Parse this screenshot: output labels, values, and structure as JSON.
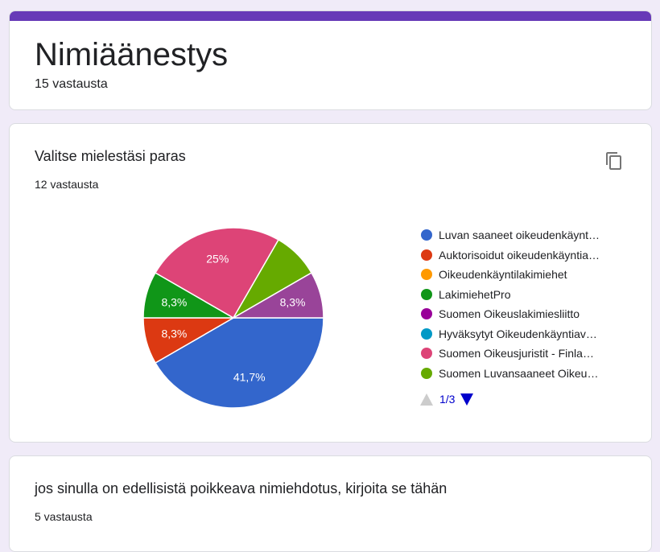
{
  "form": {
    "title": "Nimiäänestys",
    "responses": "15 vastausta"
  },
  "q1": {
    "title": "Valitse mielestäsi paras",
    "responses": "12 vastausta",
    "copy_icon": "copy-icon"
  },
  "chart_data": {
    "type": "pie",
    "legend": [
      {
        "name": "Luvan saaneet oikeudenkäynt…",
        "color": "#3366cc"
      },
      {
        "name": "Auktorisoidut oikeudenkäyntia…",
        "color": "#dc3912"
      },
      {
        "name": "Oikeudenkäyntilakimiehet",
        "color": "#ff9900"
      },
      {
        "name": "LakimiehetPro",
        "color": "#109618"
      },
      {
        "name": "Suomen Oikeuslakimiesliitto",
        "color": "#990099"
      },
      {
        "name": "Hyväksytyt Oikeudenkäyntiav…",
        "color": "#0099c6"
      },
      {
        "name": "Suomen Oikeusjuristit - Finla…",
        "color": "#dd4477"
      },
      {
        "name": "Suomen Luvansaaneet Oikeu…",
        "color": "#66aa00"
      }
    ],
    "slices": [
      {
        "value": 5,
        "label": "41,7%",
        "color": "#3366cc"
      },
      {
        "value": 1,
        "label": "8,3%",
        "color": "#dc3912"
      },
      {
        "value": 1,
        "label": "8,3%",
        "color": "#109618"
      },
      {
        "value": 3,
        "label": "25%",
        "color": "#dd4477"
      },
      {
        "value": 1,
        "label": "",
        "color": "#66aa00"
      },
      {
        "value": 1,
        "label": "8,3%",
        "color": "#994499"
      }
    ],
    "legend_page": "1/3",
    "legend_placement": "right"
  },
  "q2": {
    "title": "jos sinulla on edellisistä poikkeava nimiehdotus, kirjoita se tähän",
    "responses": "5 vastausta"
  }
}
